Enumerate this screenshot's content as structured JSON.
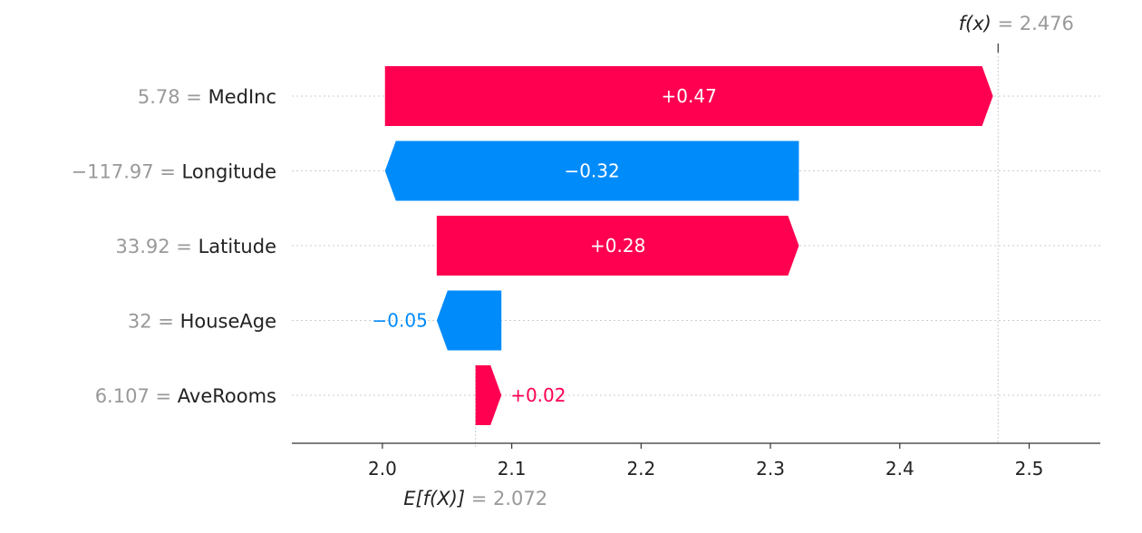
{
  "chart_data": {
    "type": "waterfall",
    "base_value": 2.072,
    "base_label": "E[f(X)]",
    "base_value_text": "= 2.072",
    "final_value": 2.476,
    "final_label": "f(x)",
    "final_value_text": "= 2.476",
    "xlim": [
      1.93,
      2.555
    ],
    "xticks": [
      2.0,
      2.1,
      2.2,
      2.3,
      2.4,
      2.5
    ],
    "xtick_labels": [
      "2.0",
      "2.1",
      "2.2",
      "2.3",
      "2.4",
      "2.5"
    ],
    "features": [
      {
        "value_text": "5.78 =",
        "name": "MedInc",
        "contribution": 0.47,
        "label": "+0.47"
      },
      {
        "value_text": "−117.97 =",
        "name": "Longitude",
        "contribution": -0.32,
        "label": "−0.32"
      },
      {
        "value_text": "33.92 =",
        "name": "Latitude",
        "contribution": 0.28,
        "label": "+0.28"
      },
      {
        "value_text": "32 =",
        "name": "HouseAge",
        "contribution": -0.05,
        "label": "−0.05"
      },
      {
        "value_text": "6.107 =",
        "name": "AveRooms",
        "contribution": 0.02,
        "label": "+0.02"
      }
    ],
    "colors": {
      "positive": "#ff0051",
      "negative": "#008bfb",
      "grid": "#cccccc",
      "axis": "#333333",
      "muted_text": "#999999",
      "label_text": "#222222"
    }
  }
}
